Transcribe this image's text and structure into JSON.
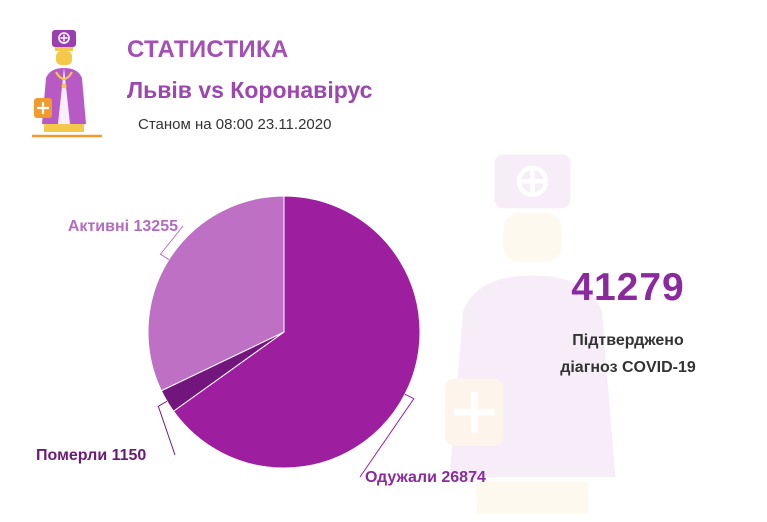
{
  "header": {
    "title": "СТАТИСТИКА",
    "subtitle": "Львів vs Коронавірус",
    "date": "Станом на 08:00 23.11.2020"
  },
  "icons": {
    "logo": "doctor-icon",
    "watermark": "doctor-watermark-icon"
  },
  "colors": {
    "recovered": "#9d1fa0",
    "active": "#bd70c4",
    "deaths": "#72167e",
    "title": "#a34fb5",
    "total": "#8a2a9e"
  },
  "stats": {
    "total": "41279",
    "caption_line1": "Підтверджено",
    "caption_line2": "діагноз COVID-19"
  },
  "chart_data": {
    "type": "pie",
    "slices": [
      {
        "label": "Одужали",
        "value": 26874,
        "display": "Одужали 26874"
      },
      {
        "label": "Померли",
        "value": 1150,
        "display": "Померли 1150"
      },
      {
        "label": "Активні",
        "value": 13255,
        "display": "Активні 13255"
      }
    ]
  }
}
